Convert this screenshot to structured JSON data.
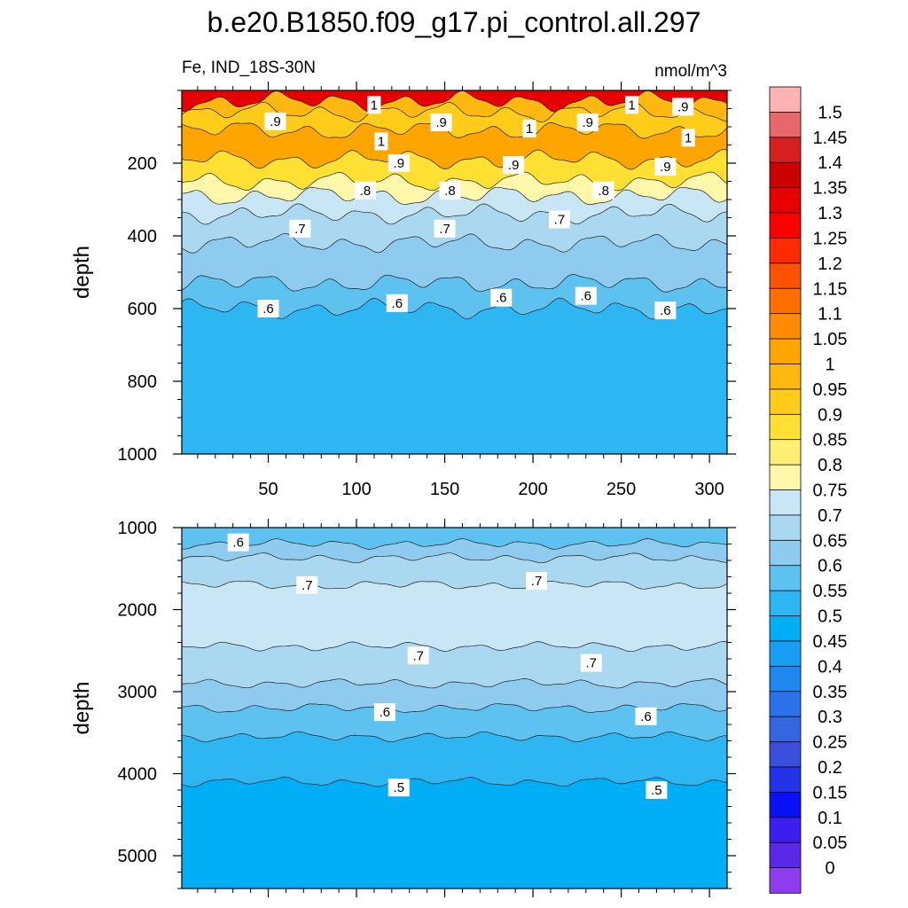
{
  "chart_data": {
    "type": "contour",
    "title": "b.e20.B1850.f09_g17.pi_control.all.297",
    "left_string": "Fe, IND_18S-30N",
    "right_string": "nmol/m^3",
    "x_ticks": [
      50,
      100,
      150,
      200,
      250,
      300
    ],
    "x_range": [
      1,
      310
    ],
    "panels": [
      {
        "name": "upper-ocean",
        "ylabel": "depth",
        "y_range": [
          0,
          1000
        ],
        "y_ticks": [
          200,
          400,
          600,
          800,
          1000
        ],
        "bands": [
          {
            "from": 0,
            "to": 30,
            "value": 1.35
          },
          {
            "from": 30,
            "to": 60,
            "value": 1.0
          },
          {
            "from": 60,
            "to": 110,
            "value": 0.95
          },
          {
            "from": 110,
            "to": 190,
            "value": 1.05
          },
          {
            "from": 190,
            "to": 250,
            "value": 0.9
          },
          {
            "from": 250,
            "to": 290,
            "value": 0.8
          },
          {
            "from": 290,
            "to": 340,
            "value": 0.75
          },
          {
            "from": 340,
            "to": 420,
            "value": 0.7
          },
          {
            "from": 420,
            "to": 530,
            "value": 0.65
          },
          {
            "from": 530,
            "to": 600,
            "value": 0.6
          },
          {
            "from": 600,
            "to": 1000,
            "value": 0.55
          }
        ],
        "contour_labels": [
          {
            "text": "1",
            "x": 110,
            "y": 40
          },
          {
            "text": ".9",
            "x": 54,
            "y": 85
          },
          {
            "text": ".9",
            "x": 148,
            "y": 88
          },
          {
            "text": "1",
            "x": 198,
            "y": 105
          },
          {
            "text": ".9",
            "x": 231,
            "y": 88
          },
          {
            "text": "1",
            "x": 256,
            "y": 40
          },
          {
            "text": ".9",
            "x": 285,
            "y": 45
          },
          {
            "text": "1",
            "x": 114,
            "y": 140
          },
          {
            "text": ".9",
            "x": 124,
            "y": 200
          },
          {
            "text": ".9",
            "x": 189,
            "y": 205
          },
          {
            "text": ".9",
            "x": 275,
            "y": 210
          },
          {
            "text": "1",
            "x": 288,
            "y": 130
          },
          {
            "text": ".8",
            "x": 105,
            "y": 275
          },
          {
            "text": ".8",
            "x": 153,
            "y": 275
          },
          {
            "text": ".8",
            "x": 240,
            "y": 275
          },
          {
            "text": ".7",
            "x": 68,
            "y": 380
          },
          {
            "text": ".7",
            "x": 150,
            "y": 380
          },
          {
            "text": ".7",
            "x": 215,
            "y": 355
          },
          {
            "text": ".6",
            "x": 50,
            "y": 600
          },
          {
            "text": ".6",
            "x": 123,
            "y": 585
          },
          {
            "text": ".6",
            "x": 182,
            "y": 570
          },
          {
            "text": ".6",
            "x": 230,
            "y": 565
          },
          {
            "text": ".6",
            "x": 275,
            "y": 605
          }
        ]
      },
      {
        "name": "deep-ocean",
        "ylabel": "depth",
        "y_range": [
          1000,
          5400
        ],
        "y_ticks": [
          1000,
          2000,
          3000,
          4000,
          5000
        ],
        "bands": [
          {
            "from": 1000,
            "to": 1200,
            "value": 0.6
          },
          {
            "from": 1200,
            "to": 1370,
            "value": 0.65
          },
          {
            "from": 1370,
            "to": 1700,
            "value": 0.7
          },
          {
            "from": 1700,
            "to": 2450,
            "value": 0.75
          },
          {
            "from": 2450,
            "to": 2900,
            "value": 0.7
          },
          {
            "from": 2900,
            "to": 3200,
            "value": 0.65
          },
          {
            "from": 3200,
            "to": 3550,
            "value": 0.6
          },
          {
            "from": 3550,
            "to": 4100,
            "value": 0.55
          },
          {
            "from": 4100,
            "to": 5400,
            "value": 0.5
          }
        ],
        "contour_labels": [
          {
            "text": ".6",
            "x": 33,
            "y": 1180
          },
          {
            "text": ".7",
            "x": 72,
            "y": 1700
          },
          {
            "text": ".7",
            "x": 202,
            "y": 1650
          },
          {
            "text": ".7",
            "x": 135,
            "y": 2560
          },
          {
            "text": ".7",
            "x": 233,
            "y": 2650
          },
          {
            "text": ".6",
            "x": 116,
            "y": 3250
          },
          {
            "text": ".6",
            "x": 264,
            "y": 3300
          },
          {
            "text": ".5",
            "x": 124,
            "y": 4170
          },
          {
            "text": ".5",
            "x": 270,
            "y": 4200
          }
        ]
      }
    ],
    "colorbar": {
      "levels": [
        "1.5",
        "1.45",
        "1.4",
        "1.35",
        "1.3",
        "1.25",
        "1.2",
        "1.15",
        "1.1",
        "1.05",
        "1",
        "0.95",
        "0.9",
        "0.85",
        "0.8",
        "0.75",
        "0.7",
        "0.65",
        "0.6",
        "0.55",
        "0.5",
        "0.45",
        "0.4",
        "0.35",
        "0.3",
        "0.25",
        "0.2",
        "0.15",
        "0.1",
        "0.05",
        "0"
      ],
      "colors": [
        "#ffb3b3",
        "#e8686a",
        "#d62020",
        "#cc0000",
        "#e60000",
        "#ff0000",
        "#ff2a00",
        "#ff5200",
        "#ff6f00",
        "#ff8c00",
        "#ffa500",
        "#ffb80f",
        "#ffcc1a",
        "#ffe033",
        "#fff075",
        "#fff8aa",
        "#c8e6f5",
        "#aad8f0",
        "#8fcbee",
        "#5ec2f0",
        "#2eb6f2",
        "#00aef5",
        "#189ef5",
        "#1e88ee",
        "#2b72ea",
        "#3466e0",
        "#3a50dd",
        "#2233e8",
        "#0a10f5",
        "#3d1ef0",
        "#5a28e6",
        "#8f3cf0"
      ]
    }
  }
}
